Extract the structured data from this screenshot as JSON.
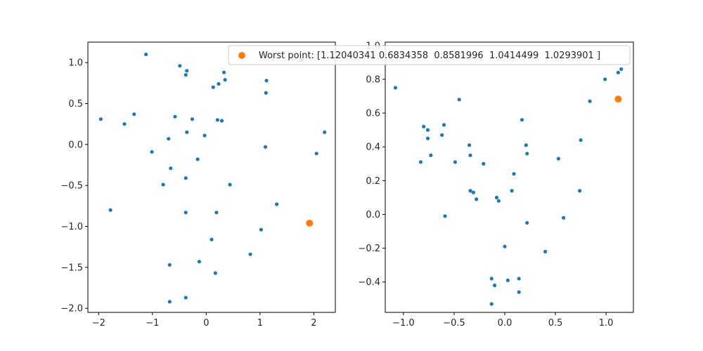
{
  "colors": {
    "series": "#1f77b4",
    "highlight": "#ff7f0e",
    "axes": "#000000",
    "background": "#ffffff"
  },
  "legend": {
    "label": "Worst point: [1.12040341 0.6834358  0.8581996  1.0414499  1.0293901 ]",
    "placement": "upper-right"
  },
  "chart_data": [
    {
      "type": "scatter",
      "title": "",
      "xlabel": "",
      "ylabel": "",
      "xlim": [
        -2.2,
        2.4
      ],
      "ylim": [
        -2.05,
        1.25
      ],
      "grid": false,
      "xticks": [
        "−2",
        "−1",
        "0",
        "1",
        "2"
      ],
      "xtick_values": [
        -2,
        -1,
        0,
        1,
        2
      ],
      "yticks": [
        "−2.0",
        "−1.5",
        "−1.0",
        "−0.5",
        "0.0",
        "0.5",
        "1.0"
      ],
      "ytick_values": [
        -2.0,
        -1.5,
        -1.0,
        -0.5,
        0.0,
        0.5,
        1.0
      ],
      "series": [
        {
          "role": "points",
          "x": [
            -1.12,
            -0.49,
            -0.38,
            -0.36,
            0.33,
            0.35,
            0.23,
            0.13,
            1.12,
            1.11,
            1.78,
            -1.96,
            -1.52,
            -1.34,
            -0.58,
            -0.26,
            0.21,
            0.29,
            -0.7,
            -0.36,
            -0.03,
            2.2,
            -1.01,
            1.1,
            2.05,
            -0.16,
            -0.66,
            -0.38,
            -0.8,
            0.44,
            -1.78,
            1.31,
            -0.38,
            0.19,
            1.02,
            0.1,
            0.82,
            -0.68,
            -0.13,
            0.17,
            -0.38,
            -0.68
          ],
          "y": [
            1.1,
            0.96,
            0.85,
            0.9,
            0.88,
            0.79,
            0.74,
            0.7,
            0.78,
            0.63,
            1.03,
            0.31,
            0.25,
            0.37,
            0.34,
            0.31,
            0.3,
            0.29,
            0.07,
            0.15,
            0.11,
            0.15,
            -0.09,
            -0.03,
            -0.11,
            -0.18,
            -0.29,
            -0.41,
            -0.49,
            -0.49,
            -0.8,
            -0.73,
            -0.83,
            -0.83,
            -1.04,
            -1.16,
            -1.34,
            -1.47,
            -1.43,
            -1.57,
            -1.87,
            -1.92
          ]
        },
        {
          "role": "worst-point",
          "x": [
            1.92
          ],
          "y": [
            -0.96
          ]
        }
      ]
    },
    {
      "type": "scatter",
      "title": "",
      "xlabel": "",
      "ylabel": "",
      "xlim": [
        -1.18,
        1.27
      ],
      "ylim": [
        -0.58,
        1.02
      ],
      "grid": false,
      "xticks": [
        "−1.0",
        "−0.5",
        "0.0",
        "0.5",
        "1.0"
      ],
      "xtick_values": [
        -1.0,
        -0.5,
        0.0,
        0.5,
        1.0
      ],
      "yticks": [
        "−0.4",
        "−0.2",
        "0.0",
        "0.2",
        "0.4",
        "0.6",
        "0.8",
        "1.0"
      ],
      "ytick_values": [
        -0.4,
        -0.2,
        0.0,
        0.2,
        0.4,
        0.6,
        0.8,
        1.0
      ],
      "series": [
        {
          "role": "points",
          "x": [
            -1.08,
            -0.45,
            -0.8,
            -0.76,
            -0.6,
            -0.62,
            -0.76,
            -0.73,
            -0.83,
            -0.49,
            -0.35,
            -0.34,
            -0.21,
            0.17,
            0.21,
            0.22,
            0.09,
            -0.34,
            -0.31,
            -0.28,
            -0.08,
            -0.06,
            0.07,
            -0.59,
            0.22,
            0.53,
            0.75,
            0.84,
            0.99,
            1.12,
            1.15,
            0.74,
            0.58,
            0.0,
            0.4,
            0.03,
            0.14,
            -0.13,
            -0.1,
            0.14,
            -0.13
          ],
          "y": [
            0.75,
            0.68,
            0.52,
            0.5,
            0.53,
            0.47,
            0.45,
            0.35,
            0.31,
            0.31,
            0.41,
            0.35,
            0.3,
            0.56,
            0.41,
            0.36,
            0.24,
            0.14,
            0.13,
            0.09,
            0.1,
            0.08,
            0.14,
            -0.01,
            -0.05,
            0.33,
            0.44,
            0.67,
            0.8,
            0.84,
            0.86,
            0.14,
            -0.02,
            -0.19,
            -0.22,
            -0.39,
            -0.38,
            -0.38,
            -0.42,
            -0.46,
            -0.53
          ]
        },
        {
          "role": "worst-point",
          "x": [
            1.12
          ],
          "y": [
            0.683
          ]
        }
      ]
    }
  ]
}
